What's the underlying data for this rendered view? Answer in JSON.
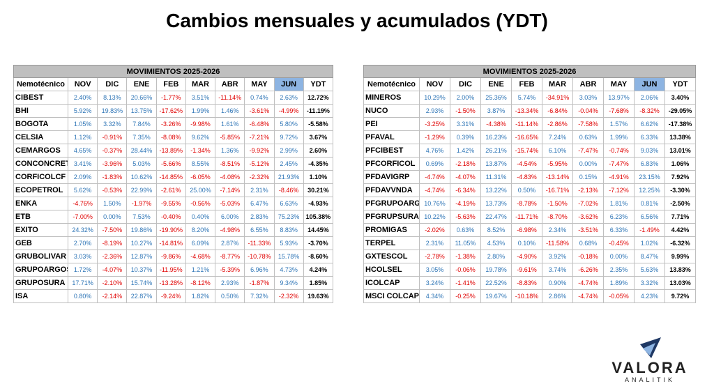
{
  "title": "Cambios mensuales y acumulados (YDT)",
  "tables": [
    {
      "caption": "MOVIMIENTOS 2025-2026",
      "columns": [
        "Nemotécnico",
        "NOV",
        "DIC",
        "ENE",
        "FEB",
        "MAR",
        "ABR",
        "MAY",
        "JUN",
        "YDT"
      ],
      "rows": [
        [
          "CIBEST",
          "2.40%",
          "8.13%",
          "20.66%",
          "-1.77%",
          "3.51%",
          "-11.14%",
          "0.74%",
          "2.63%",
          "12.72%"
        ],
        [
          "BHI",
          "5.92%",
          "19.83%",
          "13.75%",
          "-17.62%",
          "1.99%",
          "1.46%",
          "-3.61%",
          "-4.99%",
          "-11.19%"
        ],
        [
          "BOGOTA",
          "1.05%",
          "3.32%",
          "7.84%",
          "-3.26%",
          "-9.98%",
          "1.61%",
          "-6.48%",
          "5.80%",
          "-5.58%"
        ],
        [
          "CELSIA",
          "1.12%",
          "-0.91%",
          "7.35%",
          "-8.08%",
          "9.62%",
          "-5.85%",
          "-7.21%",
          "9.72%",
          "3.67%"
        ],
        [
          "CEMARGOS",
          "4.65%",
          "-0.37%",
          "28.44%",
          "-13.89%",
          "-1.34%",
          "1.36%",
          "-9.92%",
          "2.99%",
          "2.60%"
        ],
        [
          "CONCONCRET",
          "3.41%",
          "-3.96%",
          "5.03%",
          "-5.66%",
          "8.55%",
          "-8.51%",
          "-5.12%",
          "2.45%",
          "-4.35%"
        ],
        [
          "CORFICOLCF",
          "2.09%",
          "-1.83%",
          "10.62%",
          "-14.85%",
          "-6.05%",
          "-4.08%",
          "-2.32%",
          "21.93%",
          "1.10%"
        ],
        [
          "ECOPETROL",
          "5.62%",
          "-0.53%",
          "22.99%",
          "-2.61%",
          "25.00%",
          "-7.14%",
          "2.31%",
          "-8.46%",
          "30.21%"
        ],
        [
          "ENKA",
          "-4.76%",
          "1.50%",
          "-1.97%",
          "-9.55%",
          "-0.56%",
          "-5.03%",
          "6.47%",
          "6.63%",
          "-4.93%"
        ],
        [
          "ETB",
          "-7.00%",
          "0.00%",
          "7.53%",
          "-0.40%",
          "0.40%",
          "6.00%",
          "2.83%",
          "75.23%",
          "105.38%"
        ],
        [
          "EXITO",
          "24.32%",
          "-7.50%",
          "19.86%",
          "-19.90%",
          "8.20%",
          "-4.98%",
          "6.55%",
          "8.83%",
          "14.45%"
        ],
        [
          "GEB",
          "2.70%",
          "-8.19%",
          "10.27%",
          "-14.81%",
          "6.09%",
          "2.87%",
          "-11.33%",
          "5.93%",
          "-3.70%"
        ],
        [
          "GRUBOLIVAR",
          "3.03%",
          "-2.36%",
          "12.87%",
          "-9.86%",
          "-4.68%",
          "-8.77%",
          "-10.78%",
          "15.78%",
          "-8.60%"
        ],
        [
          "GRUPOARGOS",
          "1.72%",
          "-4.07%",
          "10.37%",
          "-11.95%",
          "1.21%",
          "-5.39%",
          "6.96%",
          "4.73%",
          "4.24%"
        ],
        [
          "GRUPOSURA",
          "17.71%",
          "-2.10%",
          "15.74%",
          "-13.28%",
          "-8.12%",
          "2.93%",
          "-1.87%",
          "9.34%",
          "1.85%"
        ],
        [
          "ISA",
          "0.80%",
          "-2.14%",
          "22.87%",
          "-9.24%",
          "1.82%",
          "0.50%",
          "7.32%",
          "-2.32%",
          "19.63%"
        ]
      ]
    },
    {
      "caption": "MOVIMIENTOS 2025-2026",
      "columns": [
        "Nemotécnico",
        "NOV",
        "DIC",
        "ENE",
        "FEB",
        "MAR",
        "ABR",
        "MAY",
        "JUN",
        "YDT"
      ],
      "rows": [
        [
          "MINEROS",
          "10.29%",
          "2.00%",
          "25.36%",
          "5.74%",
          "-34.91%",
          "3.03%",
          "13.97%",
          "2.06%",
          "3.40%"
        ],
        [
          "NUCO",
          "2.93%",
          "-1.50%",
          "3.87%",
          "-13.34%",
          "-6.84%",
          "-0.04%",
          "-7.68%",
          "-8.32%",
          "-29.05%"
        ],
        [
          "PEI",
          "-3.25%",
          "3.31%",
          "-4.38%",
          "-11.14%",
          "-2.86%",
          "-7.58%",
          "1.57%",
          "6.62%",
          "-17.38%"
        ],
        [
          "PFAVAL",
          "-1.29%",
          "0.39%",
          "16.23%",
          "-16.65%",
          "7.24%",
          "0.63%",
          "1.99%",
          "6.33%",
          "13.38%"
        ],
        [
          "PFCIBEST",
          "4.76%",
          "1.42%",
          "26.21%",
          "-15.74%",
          "6.10%",
          "-7.47%",
          "-0.74%",
          "9.03%",
          "13.01%"
        ],
        [
          "PFCORFICOL",
          "0.69%",
          "-2.18%",
          "13.87%",
          "-4.54%",
          "-5.95%",
          "0.00%",
          "-7.47%",
          "6.83%",
          "1.06%"
        ],
        [
          "PFDAVIGRP",
          "-4.74%",
          "-4.07%",
          "11.31%",
          "-4.83%",
          "-13.14%",
          "0.15%",
          "-4.91%",
          "23.15%",
          "7.92%"
        ],
        [
          "PFDAVVNDA",
          "-4.74%",
          "-6.34%",
          "13.22%",
          "0.50%",
          "-16.71%",
          "-2.13%",
          "-7.12%",
          "12.25%",
          "-3.30%"
        ],
        [
          "PFGRUPOARG",
          "10.76%",
          "-4.19%",
          "13.73%",
          "-8.78%",
          "-1.50%",
          "-7.02%",
          "1.81%",
          "0.81%",
          "-2.50%"
        ],
        [
          "PFGRUPSURA",
          "10.22%",
          "-5.63%",
          "22.47%",
          "-11.71%",
          "-8.70%",
          "-3.62%",
          "6.23%",
          "6.56%",
          "7.71%"
        ],
        [
          "PROMIGAS",
          "-2.02%",
          "0.63%",
          "8.52%",
          "-6.98%",
          "2.34%",
          "-3.51%",
          "6.33%",
          "-1.49%",
          "4.42%"
        ],
        [
          "TERPEL",
          "2.31%",
          "11.05%",
          "4.53%",
          "0.10%",
          "-11.58%",
          "0.68%",
          "-0.45%",
          "1.02%",
          "-6.32%"
        ],
        [
          "GXTESCOL",
          "-2.78%",
          "-1.38%",
          "2.80%",
          "-4.90%",
          "3.92%",
          "-0.18%",
          "0.00%",
          "8.47%",
          "9.99%"
        ],
        [
          "HCOLSEL",
          "3.05%",
          "-0.06%",
          "19.78%",
          "-9.61%",
          "3.74%",
          "-6.26%",
          "2.35%",
          "5.63%",
          "13.83%"
        ],
        [
          "ICOLCAP",
          "3.24%",
          "-1.41%",
          "22.52%",
          "-8.83%",
          "0.90%",
          "-4.74%",
          "1.89%",
          "3.32%",
          "13.03%"
        ],
        [
          "MSCI COLCAP",
          "4.34%",
          "-0.25%",
          "19.67%",
          "-10.18%",
          "2.86%",
          "-4.74%",
          "-0.05%",
          "4.23%",
          "9.72%"
        ]
      ]
    }
  ],
  "logo": {
    "name": "VALORA",
    "tagline": "ANALITIK"
  }
}
